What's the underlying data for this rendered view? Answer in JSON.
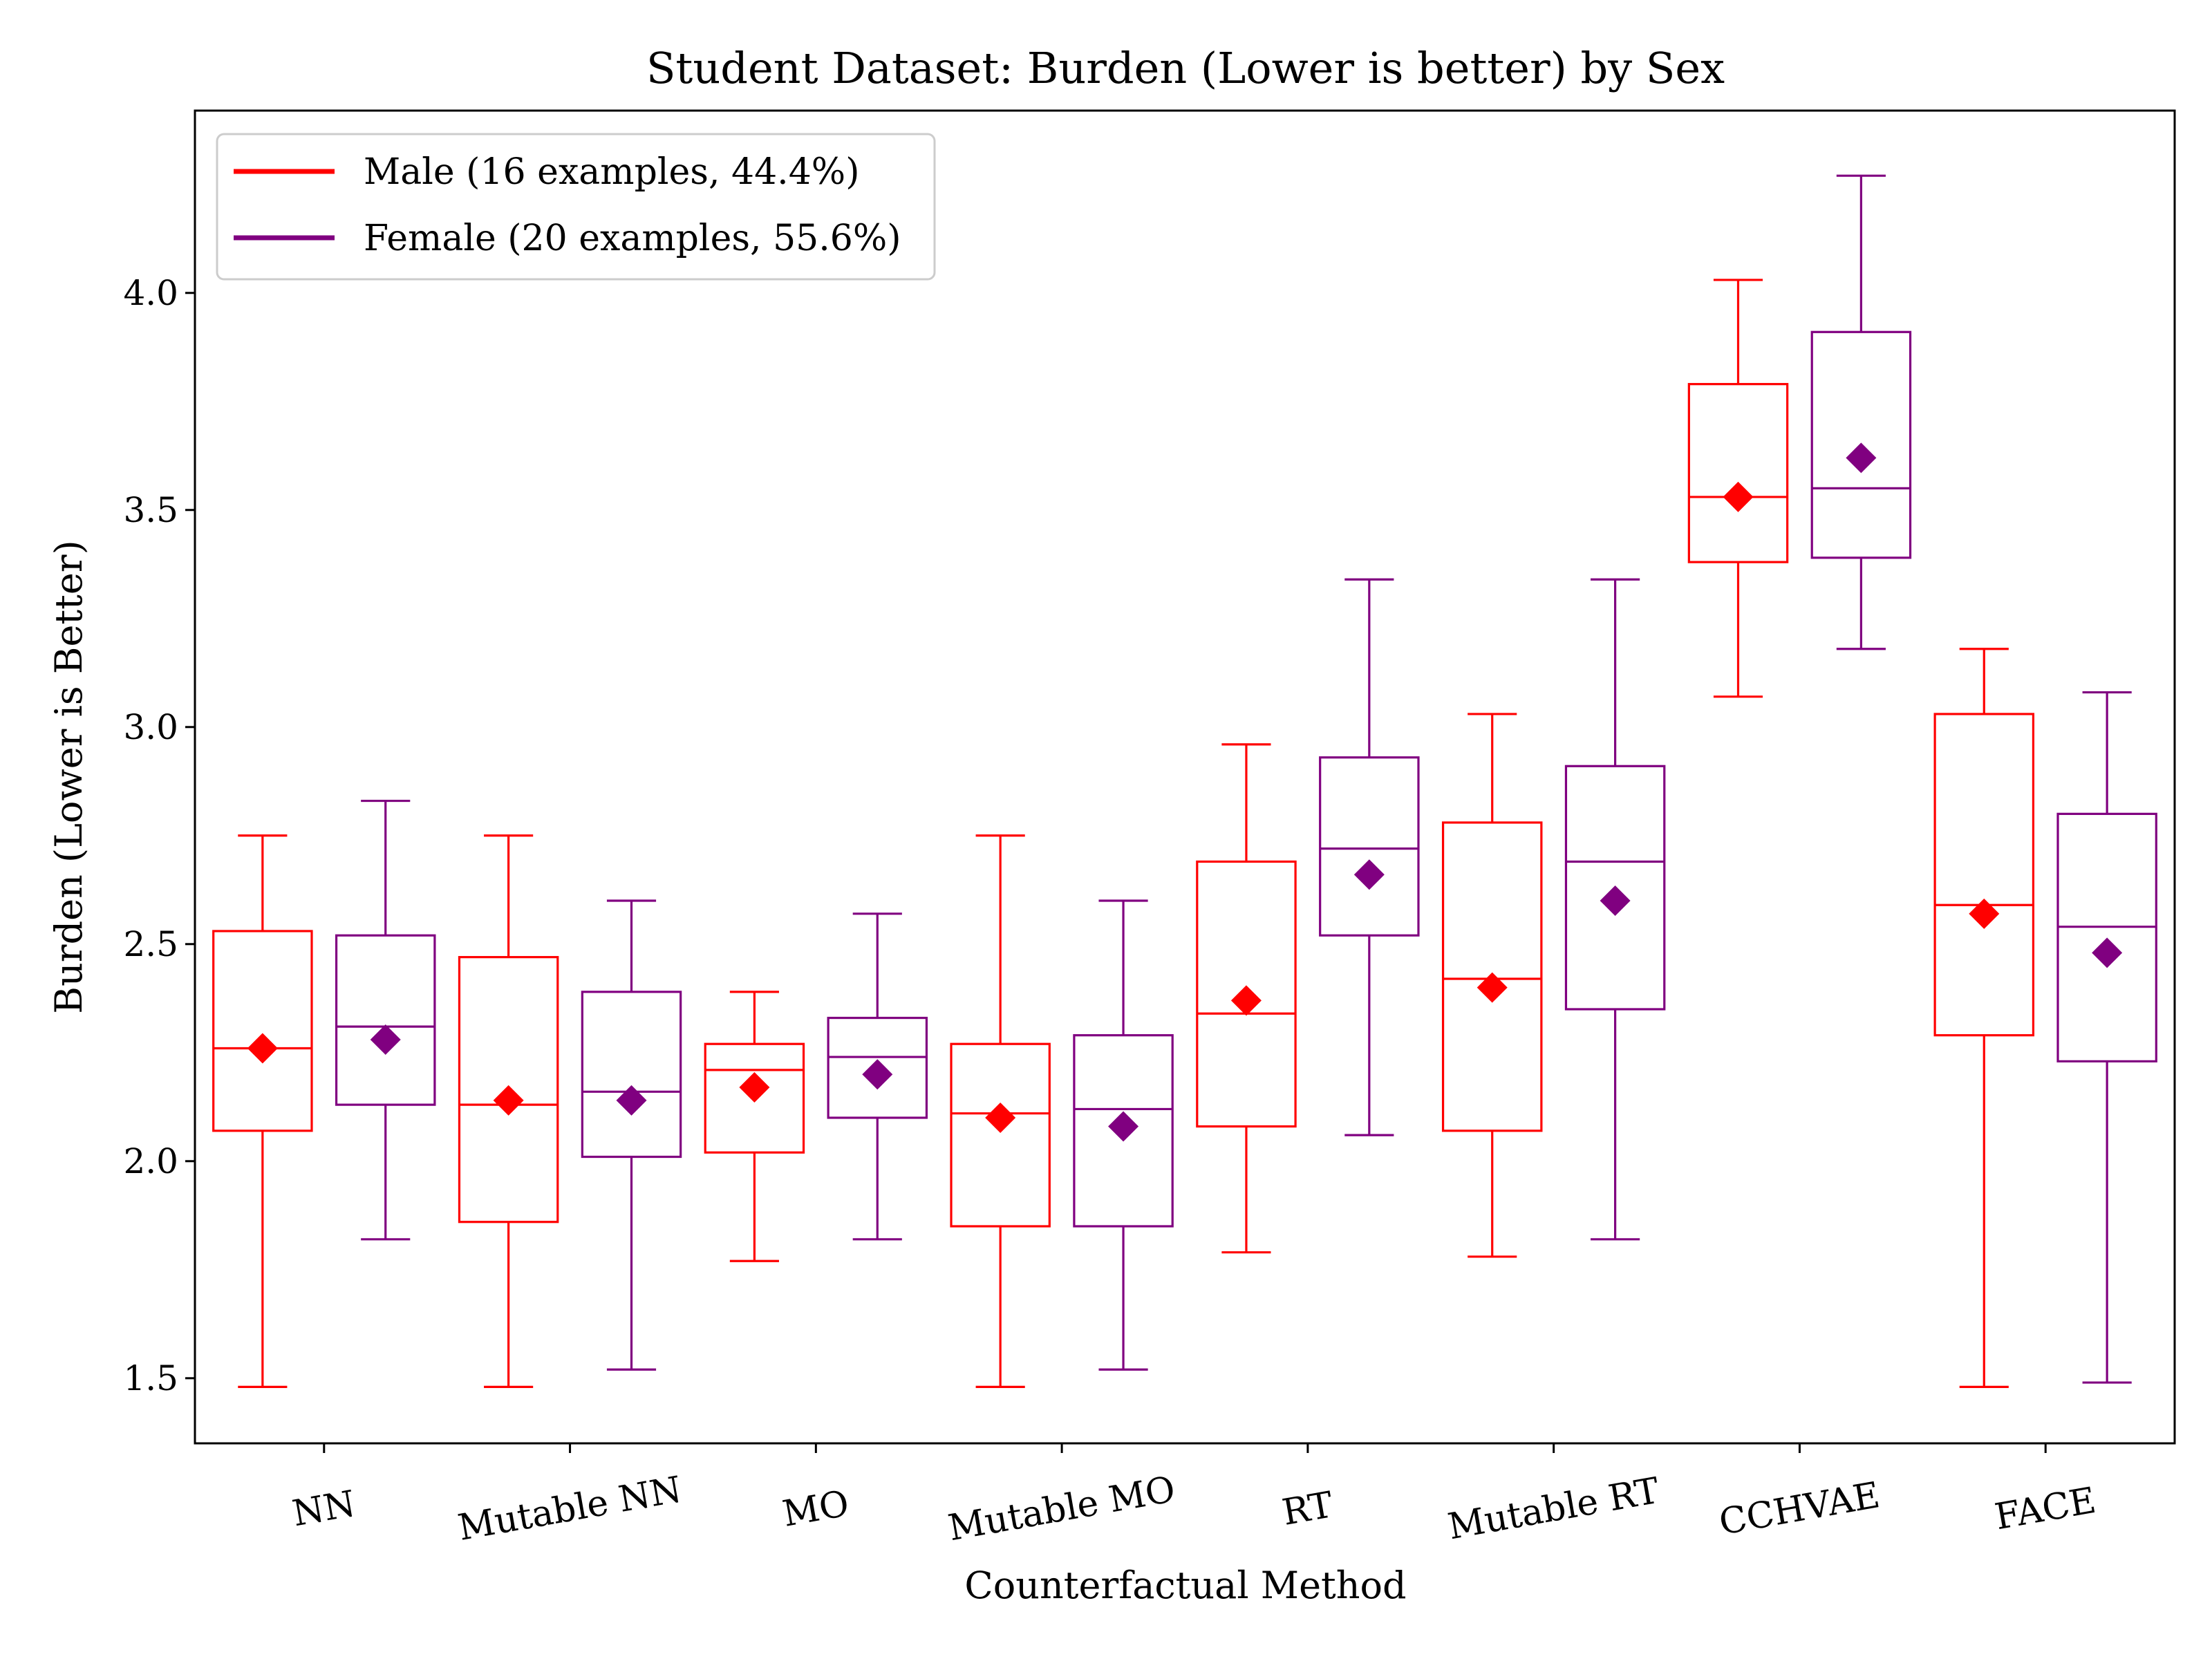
{
  "chart_data": {
    "type": "box",
    "title": "Student Dataset: Burden (Lower is better) by Sex",
    "xlabel": "Counterfactual Method",
    "ylabel": "Burden (Lower is Better)",
    "ylim": [
      1.35,
      4.42
    ],
    "yticks": [
      1.5,
      2.0,
      2.5,
      3.0,
      3.5,
      4.0
    ],
    "ytick_labels": [
      "1.5",
      "2.0",
      "2.5",
      "3.0",
      "3.5",
      "4.0"
    ],
    "categories": [
      "NN",
      "Mutable NN",
      "MO",
      "Mutable MO",
      "RT",
      "Mutable RT",
      "CCHVAE",
      "FACE"
    ],
    "legend_position": "upper-left",
    "grid": false,
    "series": [
      {
        "name": "Male (16 examples, 44.4%)",
        "color": "#ff0000",
        "boxes": [
          {
            "whislo": 1.48,
            "q1": 2.07,
            "med": 2.26,
            "q3": 2.53,
            "whishi": 2.75,
            "mean": 2.26
          },
          {
            "whislo": 1.48,
            "q1": 1.86,
            "med": 2.13,
            "q3": 2.47,
            "whishi": 2.75,
            "mean": 2.14
          },
          {
            "whislo": 1.77,
            "q1": 2.02,
            "med": 2.21,
            "q3": 2.27,
            "whishi": 2.39,
            "mean": 2.17
          },
          {
            "whislo": 1.48,
            "q1": 1.85,
            "med": 2.11,
            "q3": 2.27,
            "whishi": 2.75,
            "mean": 2.1
          },
          {
            "whislo": 1.79,
            "q1": 2.08,
            "med": 2.34,
            "q3": 2.69,
            "whishi": 2.96,
            "mean": 2.37
          },
          {
            "whislo": 1.78,
            "q1": 2.07,
            "med": 2.42,
            "q3": 2.78,
            "whishi": 3.03,
            "mean": 2.4
          },
          {
            "whislo": 3.07,
            "q1": 3.38,
            "med": 3.53,
            "q3": 3.79,
            "whishi": 4.03,
            "mean": 3.53
          },
          {
            "whislo": 1.48,
            "q1": 2.29,
            "med": 2.59,
            "q3": 3.03,
            "whishi": 3.18,
            "mean": 2.57
          }
        ]
      },
      {
        "name": "Female (20 examples, 55.6%)",
        "color": "#800080",
        "boxes": [
          {
            "whislo": 1.82,
            "q1": 2.13,
            "med": 2.31,
            "q3": 2.52,
            "whishi": 2.83,
            "mean": 2.28
          },
          {
            "whislo": 1.52,
            "q1": 2.01,
            "med": 2.16,
            "q3": 2.39,
            "whishi": 2.6,
            "mean": 2.14
          },
          {
            "whislo": 1.82,
            "q1": 2.1,
            "med": 2.24,
            "q3": 2.33,
            "whishi": 2.57,
            "mean": 2.2
          },
          {
            "whislo": 1.52,
            "q1": 1.85,
            "med": 2.12,
            "q3": 2.29,
            "whishi": 2.6,
            "mean": 2.08
          },
          {
            "whislo": 2.06,
            "q1": 2.52,
            "med": 2.72,
            "q3": 2.93,
            "whishi": 3.34,
            "mean": 2.66
          },
          {
            "whislo": 1.82,
            "q1": 2.35,
            "med": 2.69,
            "q3": 2.91,
            "whishi": 3.34,
            "mean": 2.6
          },
          {
            "whislo": 3.18,
            "q1": 3.39,
            "med": 3.55,
            "q3": 3.91,
            "whishi": 4.27,
            "mean": 3.62
          },
          {
            "whislo": 1.49,
            "q1": 2.23,
            "med": 2.54,
            "q3": 2.8,
            "whishi": 3.08,
            "mean": 2.48
          }
        ]
      }
    ]
  }
}
